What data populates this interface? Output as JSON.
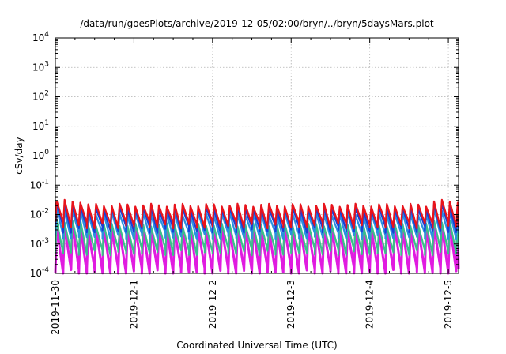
{
  "chart_data": {
    "type": "line",
    "title": "/data/run/goesPlots/archive/2019-12-05/02:00/bryn/../bryn/5daysMars.plot",
    "xlabel": "Coordinated Universal Time (UTC)",
    "ylabel": "cSv/day",
    "yscale": "log",
    "ylim": [
      0.0001,
      10000
    ],
    "y_ticks": [
      {
        "base": "10",
        "exp": "-4",
        "value": 0.0001
      },
      {
        "base": "10",
        "exp": "-3",
        "value": 0.001
      },
      {
        "base": "10",
        "exp": "-2",
        "value": 0.01
      },
      {
        "base": "10",
        "exp": "-1",
        "value": 0.1
      },
      {
        "base": "10",
        "exp": "0",
        "value": 1
      },
      {
        "base": "10",
        "exp": "1",
        "value": 10
      },
      {
        "base": "10",
        "exp": "2",
        "value": 100
      },
      {
        "base": "10",
        "exp": "3",
        "value": 1000
      },
      {
        "base": "10",
        "exp": "4",
        "value": 10000
      }
    ],
    "x_ticks": [
      "2019-11-30",
      "2019-12-1",
      "2019-12-2",
      "2019-12-3",
      "2019-12-4",
      "2019-12-5"
    ],
    "xlim": [
      0,
      5.13
    ],
    "x_unit": "days since 2019-11-30 00:00 UTC",
    "grid": true,
    "legend": "none",
    "series": [
      {
        "color": "#e8141c",
        "peak": 0.021,
        "trough": 0.0045,
        "peaks": [
          0.08,
          5.02
        ]
      },
      {
        "color": "#1a3fd6",
        "peak": 0.016,
        "trough": 0.0032,
        "peaks": [
          0.08,
          5.02
        ]
      },
      {
        "color": "#2a90e0",
        "peak": 0.0105,
        "trough": 0.0019,
        "peaks": [
          0.08,
          5.02
        ]
      },
      {
        "color": "#3bbf8a",
        "peak": 0.0045,
        "trough": 0.00055,
        "peaks": [
          0.08,
          5.02
        ]
      },
      {
        "color": "#e01be0",
        "peak": 0.0033,
        "trough": 0.00012,
        "peaks": [
          0.08,
          5.02
        ]
      }
    ],
    "cycle_days": 0.1
  }
}
